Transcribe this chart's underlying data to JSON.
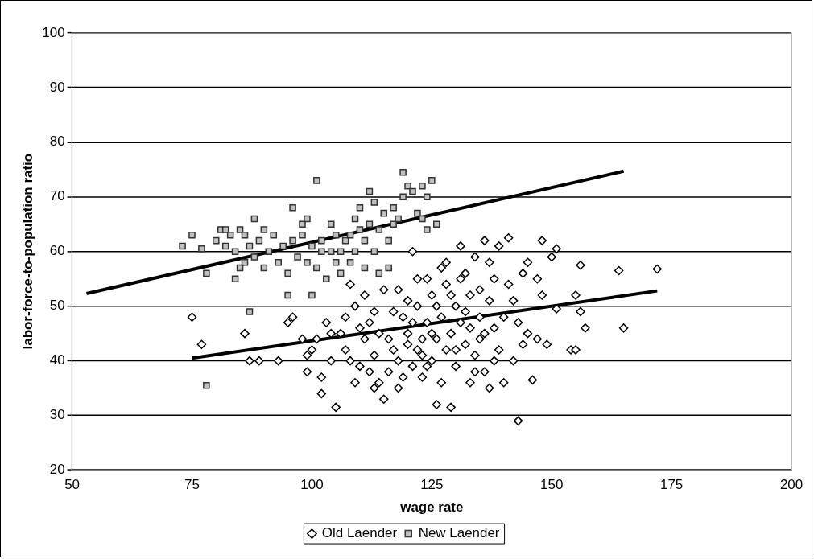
{
  "chart_data": {
    "type": "scatter",
    "xlabel": "wage rate",
    "ylabel": "labor-force-to-population ratio",
    "xlim": [
      50,
      200
    ],
    "xticks": [
      50,
      75,
      100,
      125,
      150,
      175,
      200
    ],
    "ylim": [
      20,
      100
    ],
    "yticks": [
      20,
      30,
      40,
      50,
      60,
      70,
      80,
      90,
      100
    ],
    "grid": "y",
    "legend": "bottom",
    "series": [
      {
        "name": "Old Laender",
        "color": "#000000",
        "marker": "diamond",
        "x": [
          75,
          77,
          86,
          87,
          89,
          93,
          96,
          98,
          99,
          101,
          102,
          102,
          104,
          105,
          107,
          109,
          110,
          111,
          112,
          113,
          114,
          115,
          116,
          117,
          118,
          119,
          119,
          120,
          121,
          121,
          122,
          122,
          123,
          123,
          124,
          124,
          125,
          125,
          126,
          126,
          127,
          127,
          128,
          128,
          128,
          129,
          129,
          130,
          130,
          131,
          131,
          132,
          132,
          133,
          133,
          134,
          134,
          135,
          135,
          136,
          136,
          137,
          137,
          138,
          138,
          139,
          139,
          140,
          140,
          141,
          141,
          142,
          142,
          143,
          143,
          144,
          144,
          145,
          145,
          146,
          147,
          147,
          148,
          148,
          149,
          150,
          151,
          151,
          154,
          155,
          155,
          156,
          156,
          157,
          164,
          165,
          172,
          106,
          107,
          108,
          109,
          110,
          111,
          112,
          113,
          114,
          115,
          116,
          117,
          118,
          120,
          121,
          122,
          123,
          124,
          126,
          127,
          129,
          130,
          131,
          132,
          133,
          134,
          135,
          136,
          137,
          138,
          103,
          104,
          100,
          95,
          99,
          108,
          113,
          118,
          120,
          125
        ],
        "values": [
          48,
          43,
          45,
          40,
          40,
          40,
          48,
          44,
          41,
          44,
          37,
          34,
          40,
          31.5,
          42,
          36,
          39,
          44,
          47,
          41,
          36,
          33,
          38,
          42,
          53,
          37,
          48,
          45,
          39,
          60,
          42,
          50,
          44,
          37,
          47,
          55,
          40,
          52,
          32,
          44,
          48,
          36,
          42,
          58,
          54,
          31.5,
          45,
          50,
          39,
          61,
          47,
          43,
          56,
          36,
          52,
          41,
          59,
          48,
          44,
          62,
          38,
          51,
          35,
          46,
          55,
          61,
          42,
          36,
          48,
          54,
          62.5,
          40,
          51,
          29,
          47,
          43,
          56,
          45,
          58,
          36.5,
          55,
          44,
          62,
          52,
          43,
          59,
          60.5,
          49.5,
          42,
          42,
          52,
          57.5,
          49,
          46,
          56.5,
          46,
          56.8,
          45,
          48,
          40,
          50,
          46,
          52,
          38,
          49,
          45,
          53,
          44,
          49,
          40,
          51,
          47,
          55,
          41,
          39,
          50,
          57,
          52,
          42,
          55,
          49,
          46,
          38,
          53,
          45,
          58,
          40,
          47,
          45,
          42,
          47,
          38,
          54,
          35,
          35,
          43,
          45
        ]
      },
      {
        "name": "New Laender",
        "color": "#c0c0c0",
        "marker": "square",
        "x": [
          73,
          75,
          77,
          78,
          78,
          80,
          81,
          82,
          82,
          83,
          84,
          84,
          85,
          85,
          86,
          86,
          87,
          87,
          88,
          88,
          89,
          90,
          90,
          91,
          92,
          93,
          94,
          95,
          95,
          96,
          96,
          97,
          98,
          98,
          99,
          99,
          100,
          100,
          101,
          101,
          102,
          102,
          103,
          104,
          104,
          105,
          105,
          106,
          106,
          107,
          108,
          108,
          109,
          109,
          110,
          110,
          111,
          111,
          112,
          112,
          113,
          113,
          114,
          114,
          115,
          116,
          116,
          117,
          117,
          118,
          119,
          119,
          120,
          121,
          122,
          123,
          123,
          124,
          125,
          124,
          126
        ],
        "values": [
          61,
          63,
          60.5,
          56,
          35.5,
          62,
          64,
          64,
          61,
          63,
          60,
          55,
          57,
          64,
          63,
          58,
          61,
          49,
          66,
          59,
          62,
          64,
          57,
          60,
          63,
          58,
          61,
          52,
          56,
          68,
          62,
          59,
          65,
          63,
          66,
          58,
          52,
          61,
          73,
          57,
          60,
          62,
          55,
          60,
          65,
          58,
          63,
          60,
          56,
          62,
          58,
          63,
          66,
          60,
          64,
          68,
          62,
          57,
          71,
          65,
          69,
          60,
          56,
          64,
          67,
          62,
          57,
          68,
          65,
          66,
          74.5,
          70,
          72,
          71,
          67,
          72,
          66,
          70,
          73,
          64,
          65
        ]
      },
      {
        "type": "line",
        "color": "#000000",
        "marker": "none",
        "x": [
          53,
          165
        ],
        "values": [
          52.3,
          74.7
        ]
      },
      {
        "type": "line",
        "color": "#000000",
        "marker": "none",
        "x": [
          75,
          172
        ],
        "values": [
          40.5,
          52.8
        ]
      }
    ]
  }
}
